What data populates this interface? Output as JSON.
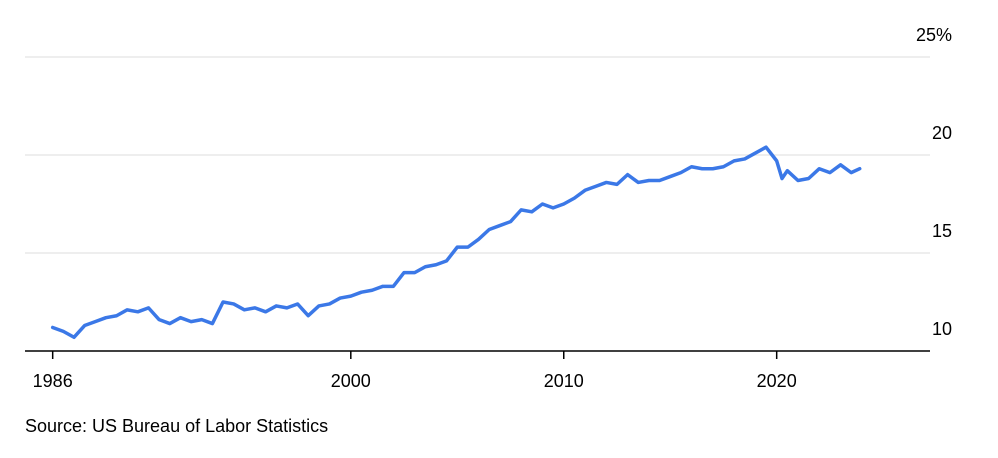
{
  "chart_data": {
    "type": "line",
    "source": "Source: US Bureau of Labor Statistics",
    "x": [
      1986,
      1986.5,
      1987,
      1987.5,
      1988,
      1988.5,
      1989,
      1989.5,
      1990,
      1990.5,
      1991,
      1991.5,
      1992,
      1992.5,
      1993,
      1993.5,
      1994,
      1994.5,
      1995,
      1995.5,
      1996,
      1996.5,
      1997,
      1997.5,
      1998,
      1998.5,
      1999,
      1999.5,
      2000,
      2000.5,
      2001,
      2001.5,
      2002,
      2002.5,
      2003,
      2003.5,
      2004,
      2004.5,
      2005,
      2005.5,
      2006,
      2006.5,
      2007,
      2007.5,
      2008,
      2008.5,
      2009,
      2009.5,
      2010,
      2010.5,
      2011,
      2011.5,
      2012,
      2012.5,
      2013,
      2013.5,
      2014,
      2014.5,
      2015,
      2015.5,
      2016,
      2016.5,
      2017,
      2017.5,
      2018,
      2018.5,
      2019,
      2019.5,
      2020,
      2020.25,
      2020.5,
      2021,
      2021.5,
      2022,
      2022.5,
      2023,
      2023.5,
      2023.9
    ],
    "series": [
      {
        "color": "#3b78e7",
        "values": [
          11.2,
          11.0,
          10.7,
          11.3,
          11.5,
          11.7,
          11.8,
          12.1,
          12.0,
          12.2,
          11.6,
          11.4,
          11.7,
          11.5,
          11.6,
          11.4,
          12.5,
          12.4,
          12.1,
          12.2,
          12.0,
          12.3,
          12.2,
          12.4,
          11.8,
          12.3,
          12.4,
          12.7,
          12.8,
          13.0,
          13.1,
          13.3,
          13.3,
          14.0,
          14.0,
          14.3,
          14.4,
          14.6,
          15.3,
          15.3,
          15.7,
          16.2,
          16.4,
          16.6,
          17.2,
          17.1,
          17.5,
          17.3,
          17.5,
          17.8,
          18.2,
          18.4,
          18.6,
          18.5,
          19.0,
          18.6,
          18.7,
          18.7,
          18.9,
          19.1,
          19.4,
          19.3,
          19.3,
          19.4,
          19.7,
          19.8,
          20.1,
          20.4,
          19.7,
          18.8,
          19.2,
          18.7,
          18.8,
          19.3,
          19.1,
          19.5,
          19.1,
          19.3
        ]
      }
    ],
    "xlim": [
      1984.7,
      2027.2
    ],
    "xticks": [
      1986,
      2000,
      2010,
      2020
    ],
    "ylim": [
      10,
      25
    ],
    "yticks": [
      10,
      15,
      20,
      {
        "value": 25,
        "label": "25%"
      }
    ],
    "grid": true
  }
}
